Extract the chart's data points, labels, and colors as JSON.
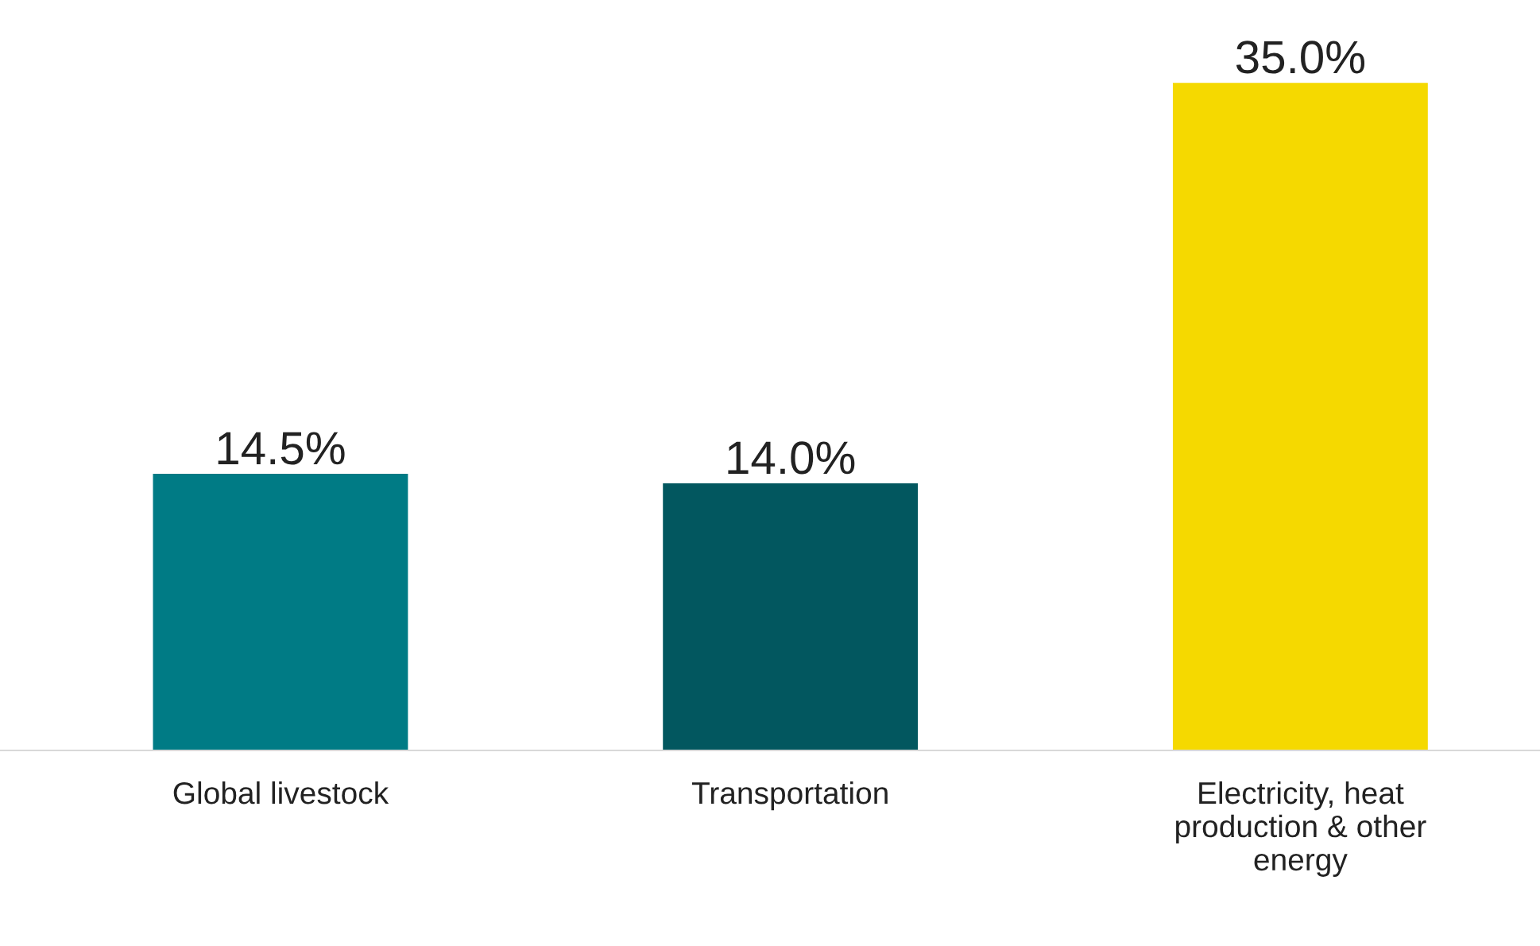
{
  "chart_data": {
    "type": "bar",
    "categories": [
      "Global livestock",
      "Transportation",
      "Electricity, heat\nproduction & other\nenergy"
    ],
    "values": [
      14.5,
      14.0,
      35.0
    ],
    "colors": [
      "#007b85",
      "#02575f",
      "#f5d900"
    ],
    "value_labels": [
      "14.5%",
      "14.0%",
      "35.0%"
    ],
    "grid": false,
    "legend": false
  }
}
